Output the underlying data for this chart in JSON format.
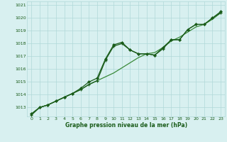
{
  "xlabel": "Graphe pression niveau de la mer (hPa)",
  "bg_color": "#d8f0f0",
  "grid_color": "#b0d8d8",
  "line_color_dark": "#1a5c1a",
  "line_color_mid": "#3a8a3a",
  "ylim_min": 1012.3,
  "ylim_max": 1021.3,
  "yticks": [
    1013,
    1014,
    1015,
    1016,
    1017,
    1018,
    1019,
    1020,
    1021
  ],
  "xticks": [
    0,
    1,
    2,
    3,
    4,
    5,
    6,
    7,
    8,
    9,
    10,
    11,
    12,
    13,
    14,
    15,
    16,
    17,
    18,
    19,
    20,
    21,
    22,
    23
  ],
  "series1_x": [
    0,
    1,
    2,
    3,
    4,
    5,
    6,
    7,
    8,
    9,
    10,
    11,
    12,
    13,
    14,
    15,
    16,
    17,
    18,
    19,
    20,
    21,
    22,
    23
  ],
  "series1_y": [
    1012.5,
    1013.0,
    1013.2,
    1013.5,
    1013.8,
    1014.1,
    1014.5,
    1015.0,
    1015.3,
    1016.8,
    1017.9,
    1018.1,
    1017.5,
    1017.2,
    1017.2,
    1017.1,
    1017.7,
    1018.3,
    1018.3,
    1019.1,
    1019.5,
    1019.5,
    1020.0,
    1020.5
  ],
  "series2_x": [
    0,
    1,
    2,
    3,
    4,
    5,
    6,
    7,
    8,
    9,
    10,
    11,
    12,
    13,
    14,
    15,
    16,
    17,
    18,
    19,
    20,
    21,
    22,
    23
  ],
  "series2_y": [
    1012.5,
    1013.0,
    1013.2,
    1013.5,
    1013.8,
    1014.1,
    1014.4,
    1014.8,
    1015.1,
    1015.4,
    1015.7,
    1016.1,
    1016.5,
    1016.9,
    1017.2,
    1017.3,
    1017.7,
    1018.2,
    1018.5,
    1018.9,
    1019.3,
    1019.5,
    1019.9,
    1020.4
  ],
  "series3_x": [
    0,
    1,
    2,
    3,
    4,
    5,
    6,
    7,
    8,
    9,
    10,
    11,
    12,
    13,
    14,
    15,
    16,
    17,
    18,
    19,
    20,
    21,
    22,
    23
  ],
  "series3_y": [
    1012.4,
    1013.0,
    1013.2,
    1013.5,
    1013.8,
    1014.1,
    1014.4,
    1014.8,
    1015.1,
    1016.7,
    1017.8,
    1018.0,
    1017.5,
    1017.2,
    1017.2,
    1017.1,
    1017.6,
    1018.3,
    1018.3,
    1019.1,
    1019.5,
    1019.5,
    1020.0,
    1020.4
  ]
}
